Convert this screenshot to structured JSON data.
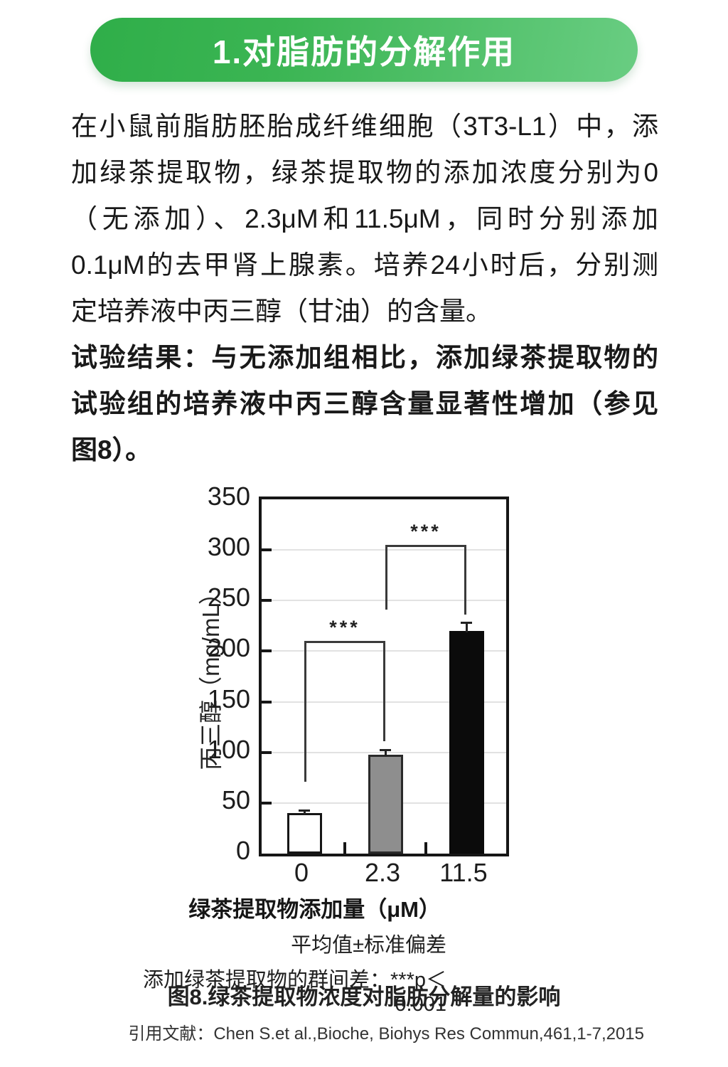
{
  "header": {
    "title": "1.对脂肪的分解作用"
  },
  "body_text": {
    "paragraph1_lines": [
      "在小鼠前脂肪胚胎成纤维细胞（3T3-L1）中，添",
      "加绿茶提取物，绿茶提取物的添加浓度分别为0",
      "（无添加）、2.3μM和11.5μM，同时分别添加",
      "0.1μM的去甲肾上腺素。培养24小时后，分别测",
      "定培养液中丙三醇（甘油）的含量。"
    ],
    "paragraph2_lines": [
      "试验结果：与无添加组相比，添加绿茶提取物的",
      "试验组的培养液中丙三醇含量显著性增加（参见",
      "图8）。"
    ]
  },
  "chart_data": {
    "type": "bar",
    "title": "",
    "categories": [
      "0",
      "2.3",
      "11.5"
    ],
    "values": [
      40,
      98,
      220
    ],
    "errors": [
      2,
      4,
      8
    ],
    "bar_colors": [
      "#ffffff",
      "#8e8e8e",
      "#0b0b0b"
    ],
    "bar_border_colors": [
      "#161616",
      "#2a2a2a",
      "#0b0b0b"
    ],
    "xlabel": "绿茶提取物添加量（μM）",
    "ylabel": "丙三醇（mg/mL）",
    "ylim": [
      0,
      350
    ],
    "ytick_step": 50,
    "grid": true,
    "legend": "none",
    "significance": [
      {
        "label": "***",
        "bar_from": 0,
        "bar_to": 1,
        "y_line": 210,
        "leg_from_bottom": 71,
        "leg_to_bottom": 111
      },
      {
        "label": "***",
        "bar_from": 1,
        "bar_to": 2,
        "y_line": 305,
        "leg_from_bottom": 241,
        "leg_to_bottom": 236
      }
    ]
  },
  "figure_notes": {
    "note1": "平均值±标准偏差",
    "note2": "添加绿茶提取物的群间差：***p＜0.001"
  },
  "figure_caption": "图8.绿茶提取物浓度对脂肪分解量的影响",
  "citation": "引用文献：Chen S.et al.,Bioche, Biohys Res Commun,461,1-7,2015",
  "colors": {
    "banner_green_dark": "#2fae49",
    "banner_green_light": "#69cd82",
    "text": "#191919",
    "axis": "#161616",
    "gridline": "#e2e2e2",
    "bracket": "#3a3a3a"
  }
}
